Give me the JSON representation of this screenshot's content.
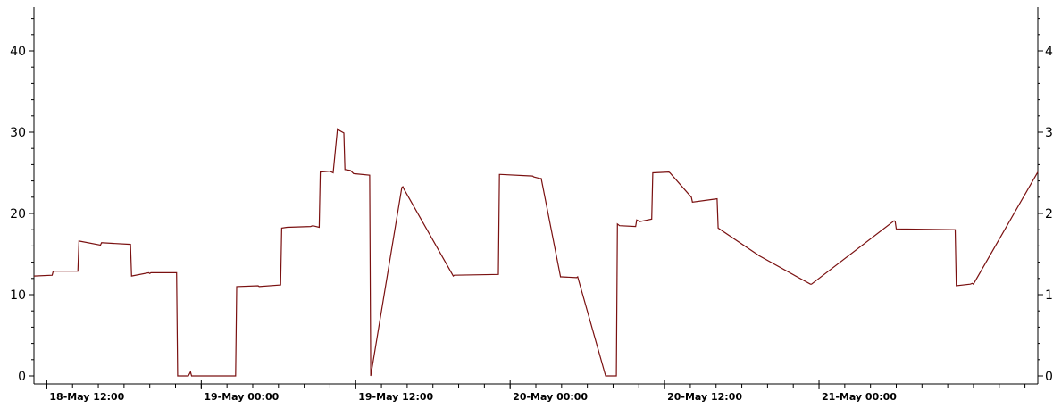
{
  "chart_data": {
    "type": "line",
    "title": "",
    "xlabel": "",
    "ylabel": "",
    "ylim": [
      0,
      45
    ],
    "xlim": [
      "2024-05-18 11:00",
      "2024-05-21 17:00"
    ],
    "yticks": [
      0,
      10,
      20,
      30,
      40
    ],
    "right_yticks": [
      "0",
      "1",
      "2",
      "3",
      "4"
    ],
    "xtick_labels": [
      {
        "t": "2024-05-18 12:00",
        "label": "18-May 12:00"
      },
      {
        "t": "2024-05-19 00:00",
        "label": "19-May 00:00"
      },
      {
        "t": "2024-05-19 12:00",
        "label": "19-May 12:00"
      },
      {
        "t": "2024-05-20 00:00",
        "label": "20-May 00:00"
      },
      {
        "t": "2024-05-20 12:00",
        "label": "20-May 12:00"
      },
      {
        "t": "2024-05-21 00:00",
        "label": "21-May 00:00"
      }
    ],
    "grid": false,
    "line_color": "#7a1010",
    "series": [
      {
        "x": [
          "2024-05-18 11:00",
          "2024-05-18 12:25",
          "2024-05-18 12:30",
          "2024-05-18 14:25",
          "2024-05-18 14:30",
          "2024-05-18 16:10",
          "2024-05-18 16:15",
          "2024-05-18 18:30",
          "2024-05-18 18:35",
          "2024-05-18 19:55",
          "2024-05-18 20:00",
          "2024-05-18 20:05",
          "2024-05-18 22:05",
          "2024-05-18 22:10",
          "2024-05-18 22:15",
          "2024-05-18 23:00",
          "2024-05-18 23:10",
          "2024-05-18 23:15",
          "2024-05-19 02:40",
          "2024-05-19 02:45",
          "2024-05-19 04:25",
          "2024-05-19 04:30",
          "2024-05-19 06:10",
          "2024-05-19 06:15",
          "2024-05-19 06:40",
          "2024-05-19 08:30",
          "2024-05-19 08:40",
          "2024-05-19 09:10",
          "2024-05-19 09:15",
          "2024-05-19 10:00",
          "2024-05-19 10:15",
          "2024-05-19 10:35",
          "2024-05-19 10:45",
          "2024-05-19 11:05",
          "2024-05-19 11:10",
          "2024-05-19 11:35",
          "2024-05-19 11:50",
          "2024-05-19 13:05",
          "2024-05-19 13:10",
          "2024-05-19 15:35",
          "2024-05-19 15:40",
          "2024-05-19 15:45",
          "2024-05-19 19:35",
          "2024-05-19 19:40",
          "2024-05-19 23:05",
          "2024-05-19 23:10",
          "2024-05-19 23:15",
          "2024-05-20 01:45",
          "2024-05-20 01:50",
          "2024-05-20 02:20",
          "2024-05-20 02:25",
          "2024-05-20 03:55",
          "2024-05-20 04:00",
          "2024-05-20 05:10",
          "2024-05-20 05:15",
          "2024-05-20 07:25",
          "2024-05-20 07:30",
          "2024-05-20 08:15",
          "2024-05-20 08:20",
          "2024-05-20 08:30",
          "2024-05-20 09:45",
          "2024-05-20 09:50",
          "2024-05-20 10:05",
          "2024-05-20 11:00",
          "2024-05-20 11:05",
          "2024-05-20 12:20",
          "2024-05-20 12:25",
          "2024-05-20 14:05",
          "2024-05-20 14:10",
          "2024-05-20 16:05",
          "2024-05-20 16:10",
          "2024-05-20 19:15",
          "2024-05-20 19:20",
          "2024-05-20 23:20",
          "2024-05-20 23:25",
          "2024-05-21 05:50",
          "2024-05-21 05:55",
          "2024-05-21 06:00",
          "2024-05-21 10:35",
          "2024-05-21 10:40",
          "2024-05-21 11:45",
          "2024-05-21 11:55",
          "2024-05-21 12:00",
          "2024-05-21 17:00"
        ],
        "y": [
          12.3,
          12.4,
          12.9,
          12.9,
          16.6,
          16.1,
          16.4,
          16.2,
          12.3,
          12.7,
          12.6,
          12.7,
          12.7,
          0.0,
          0.0,
          0.0,
          0.5,
          0.0,
          0.0,
          11.0,
          11.1,
          11.0,
          11.2,
          18.2,
          18.3,
          18.4,
          18.5,
          18.3,
          25.1,
          25.2,
          25.0,
          30.4,
          30.2,
          29.9,
          25.4,
          25.3,
          24.9,
          24.7,
          0.0,
          23.2,
          23.3,
          23.0,
          12.3,
          12.4,
          12.5,
          24.8,
          24.8,
          24.6,
          24.5,
          24.3,
          24.3,
          12.2,
          12.2,
          12.1,
          12.2,
          0.0,
          0.0,
          0.0,
          18.7,
          18.5,
          18.4,
          19.2,
          19.0,
          19.3,
          25.0,
          25.1,
          25.0,
          22.0,
          21.4,
          21.8,
          18.2,
          14.9,
          14.8,
          11.3,
          11.3,
          19.1,
          19.0,
          18.1,
          18.0,
          11.1,
          11.3,
          11.4,
          11.3,
          25.1
        ]
      }
    ]
  }
}
